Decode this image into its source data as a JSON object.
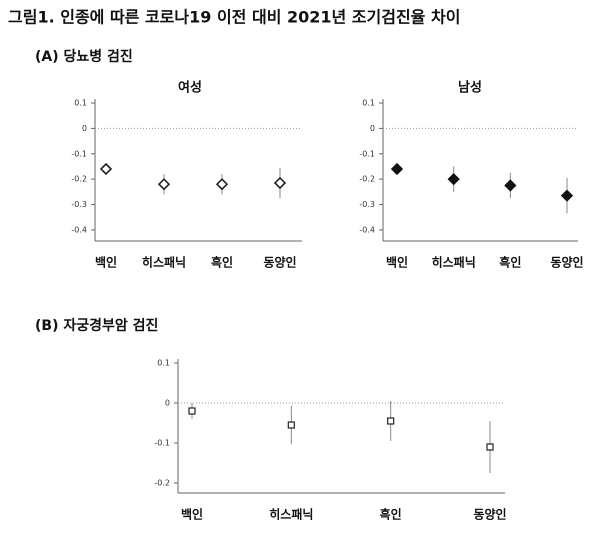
{
  "title": "그림1. 인종에 따른 코로나19 이전 대비 2021년 조기검진율 차이",
  "chart_data": [
    {
      "type": "dot",
      "section": "(A) 당뇨병 검진",
      "subtitle": "여성",
      "categories": [
        "백인",
        "히스패닉",
        "흑인",
        "동양인"
      ],
      "values": [
        -0.16,
        -0.22,
        -0.22,
        -0.215
      ],
      "errors": [
        0.01,
        0.04,
        0.04,
        0.06
      ],
      "marker": "diamond",
      "marker_fill": "#ffffff",
      "color": "#222222",
      "ylim": [
        -0.42,
        0.1
      ],
      "yticks": [
        0.1,
        0,
        -0.1,
        -0.2,
        -0.3,
        -0.4
      ],
      "zero_line": true
    },
    {
      "type": "dot",
      "subtitle": "남성",
      "categories": [
        "백인",
        "히스패닉",
        "흑인",
        "동양인"
      ],
      "values": [
        -0.16,
        -0.2,
        -0.225,
        -0.265
      ],
      "errors": [
        0.02,
        0.05,
        0.05,
        0.07
      ],
      "marker": "diamond",
      "marker_fill": "#111111",
      "color": "#111111",
      "ylim": [
        -0.42,
        0.1
      ],
      "yticks": [
        0.1,
        0,
        -0.1,
        -0.2,
        -0.3,
        -0.4
      ],
      "zero_line": true
    },
    {
      "type": "dot",
      "section": "(B) 자궁경부암 검진",
      "categories": [
        "백인",
        "히스패닉",
        "흑인",
        "동양인"
      ],
      "values": [
        -0.02,
        -0.055,
        -0.045,
        -0.11
      ],
      "errors": [
        0.02,
        0.048,
        0.05,
        0.065
      ],
      "marker": "square",
      "marker_fill": "#ffffff",
      "color": "#222222",
      "ylim": [
        -0.21,
        0.1
      ],
      "yticks": [
        0.1,
        0,
        -0.1,
        -0.2
      ],
      "zero_line": true
    }
  ]
}
